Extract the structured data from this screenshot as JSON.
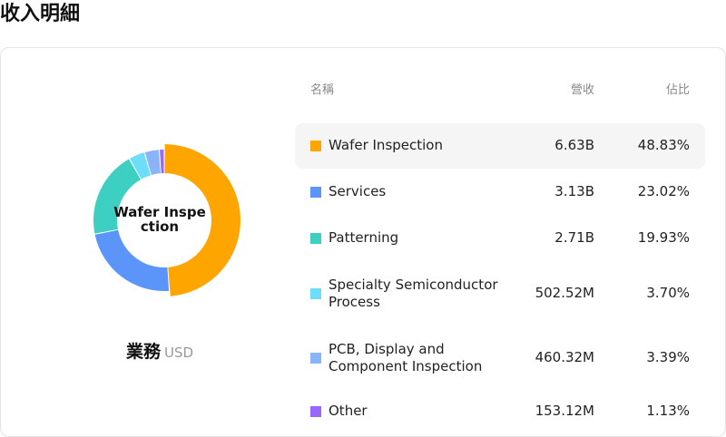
{
  "page": {
    "title": "收入明細"
  },
  "chart_data": {
    "type": "pie",
    "center_label": "Wafer Inspection",
    "category_label": "業務",
    "currency": "USD",
    "columns": {
      "name": "名稱",
      "revenue": "營收",
      "share": "佔比"
    },
    "segments": [
      {
        "name": "Wafer Inspection",
        "revenue": "6.63B",
        "share": "48.83%",
        "value": 48.83,
        "color": "#FFA500"
      },
      {
        "name": "Services",
        "revenue": "3.13B",
        "share": "23.02%",
        "value": 23.02,
        "color": "#5B95FA"
      },
      {
        "name": "Patterning",
        "revenue": "2.71B",
        "share": "19.93%",
        "value": 19.93,
        "color": "#3DCFC1"
      },
      {
        "name": "Specialty Semiconductor Process",
        "revenue": "502.52M",
        "share": "3.70%",
        "value": 3.7,
        "color": "#6EDDF7"
      },
      {
        "name": "PCB, Display and Component Inspection",
        "revenue": "460.32M",
        "share": "3.39%",
        "value": 3.39,
        "color": "#8AB4F8"
      },
      {
        "name": "Other",
        "revenue": "153.12M",
        "share": "1.13%",
        "value": 1.13,
        "color": "#9966FF"
      }
    ],
    "highlighted": "Wafer Inspection"
  }
}
